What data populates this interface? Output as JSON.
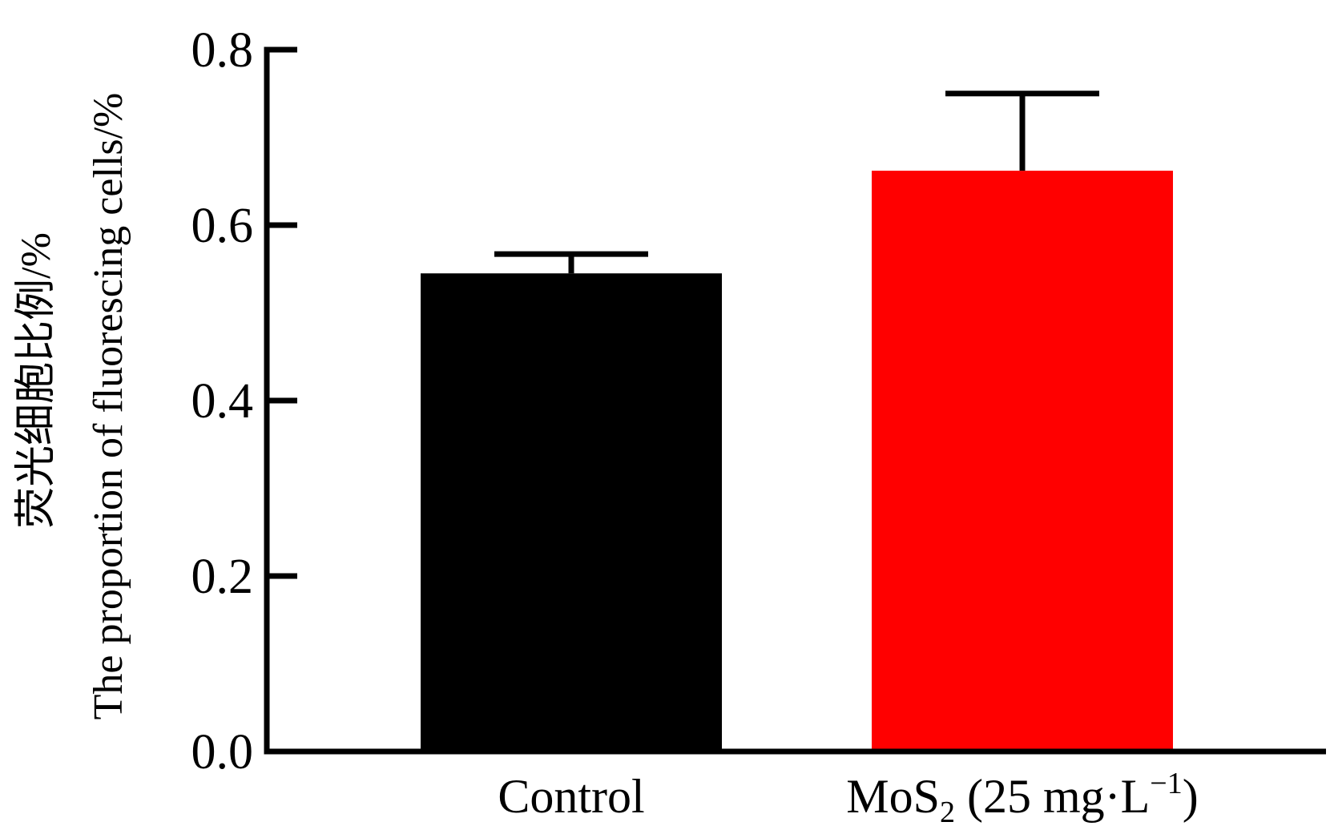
{
  "chart_data": {
    "type": "bar",
    "title": "",
    "xlabel": "",
    "ylabel_lines": [
      "荧光细胞比例/%",
      "The proportion of fluorescing cells/%"
    ],
    "categories": [
      {
        "main": "Control",
        "sub": "",
        "rest": ""
      },
      {
        "main": "MoS",
        "sub": "2",
        "rest": " (25 mg·L",
        "sup": "−1",
        "tail": ")"
      }
    ],
    "values": [
      0.545,
      0.662
    ],
    "errors": [
      0.022,
      0.088
    ],
    "bar_colors": [
      "#000000",
      "#ff0000"
    ],
    "ylim": [
      0.0,
      0.8
    ],
    "yticks": [
      "0.0",
      "0.2",
      "0.4",
      "0.6",
      "0.8"
    ],
    "grid": false,
    "legend": "none"
  }
}
